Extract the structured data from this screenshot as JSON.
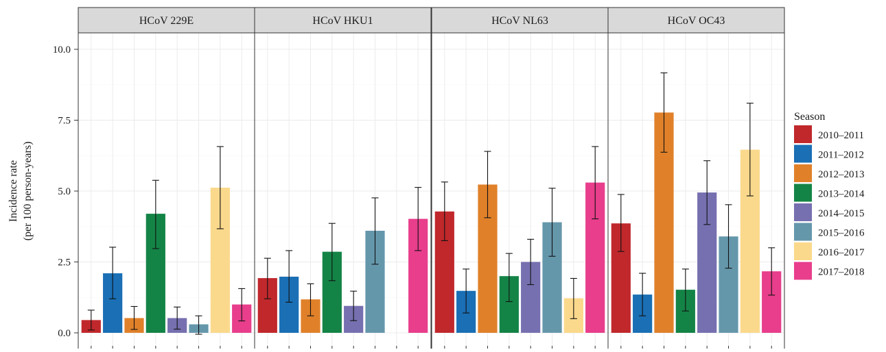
{
  "chart_data": {
    "type": "bar",
    "ylabel_line1": "Incidence rate",
    "ylabel_line2": "(per 100 person-years)",
    "ylim": [
      0,
      10
    ],
    "yticks": [
      0,
      2.5,
      5,
      7.5,
      10
    ],
    "ytick_labels": [
      "0.0",
      "2.5",
      "5.0",
      "7.5",
      "10.0"
    ],
    "grid": true,
    "legend": {
      "title": "Season",
      "position": "right",
      "items": [
        "2010–2011",
        "2011–2012",
        "2012–2013",
        "2013–2014",
        "2014–2015",
        "2015–2016",
        "2016–2017",
        "2017–2018"
      ]
    },
    "colors": [
      "#c0282c",
      "#1a6fb5",
      "#e0812a",
      "#148446",
      "#7670b0",
      "#6597ab",
      "#fbd98c",
      "#e83e8c"
    ],
    "panels": [
      {
        "title": "HCoV 229E",
        "values": [
          0.45,
          2.1,
          0.52,
          4.2,
          0.52,
          0.3,
          5.12,
          1.0
        ],
        "lower": [
          0.1,
          1.2,
          0.12,
          2.97,
          0.13,
          -0.05,
          3.67,
          0.42
        ],
        "upper": [
          0.8,
          3.02,
          0.93,
          5.38,
          0.91,
          0.6,
          6.57,
          1.56
        ]
      },
      {
        "title": "HCoV HKU1",
        "values": [
          1.93,
          1.98,
          1.18,
          2.86,
          0.95,
          3.6,
          null,
          4.02
        ],
        "lower": [
          1.2,
          1.08,
          0.6,
          1.84,
          0.43,
          2.42,
          null,
          2.9
        ],
        "upper": [
          2.63,
          2.9,
          1.73,
          3.86,
          1.47,
          4.76,
          null,
          5.13
        ]
      },
      {
        "title": "HCoV NL63",
        "values": [
          4.28,
          1.48,
          5.23,
          2.0,
          2.5,
          3.9,
          1.22,
          5.3
        ],
        "lower": [
          3.25,
          0.7,
          4.06,
          1.1,
          1.7,
          2.7,
          0.5,
          4.02
        ],
        "upper": [
          5.32,
          2.25,
          6.4,
          2.8,
          3.3,
          5.1,
          1.92,
          6.57
        ]
      },
      {
        "title": "HCoV OC43",
        "values": [
          3.86,
          1.35,
          7.77,
          1.52,
          4.95,
          3.4,
          6.46,
          2.17
        ],
        "lower": [
          2.87,
          0.6,
          6.37,
          0.77,
          3.82,
          2.28,
          4.83,
          1.33
        ],
        "upper": [
          4.88,
          2.1,
          9.17,
          2.25,
          6.07,
          4.52,
          8.1,
          3.0
        ]
      }
    ]
  }
}
